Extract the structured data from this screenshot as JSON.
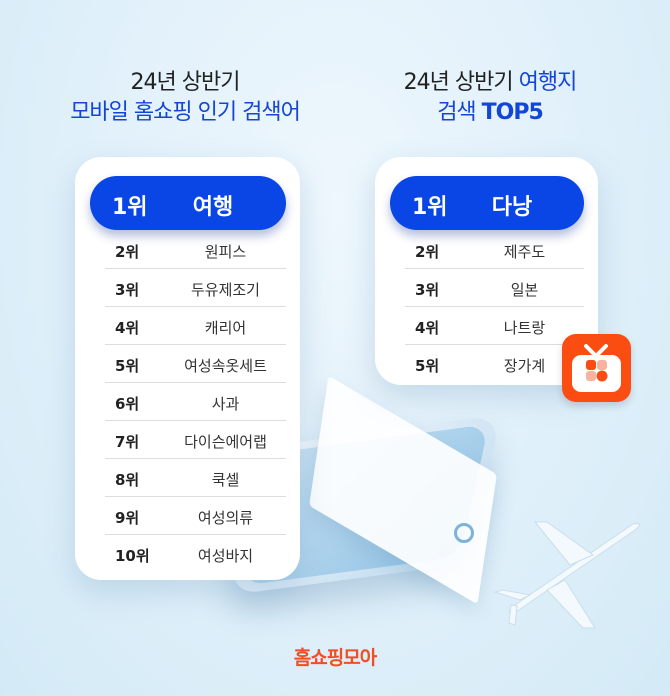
{
  "left": {
    "title_line1": "24년 상반기",
    "title_line2": "모바일 홈쇼핑 인기 검색어",
    "items": [
      {
        "rank": "1위",
        "name": "여행"
      },
      {
        "rank": "2위",
        "name": "원피스"
      },
      {
        "rank": "3위",
        "name": "두유제조기"
      },
      {
        "rank": "4위",
        "name": "캐리어"
      },
      {
        "rank": "5위",
        "name": "여성속옷세트"
      },
      {
        "rank": "6위",
        "name": "사과"
      },
      {
        "rank": "7위",
        "name": "다이슨에어랩"
      },
      {
        "rank": "8위",
        "name": "쿡셀"
      },
      {
        "rank": "9위",
        "name": "여성의류"
      },
      {
        "rank": "10위",
        "name": "여성바지"
      }
    ]
  },
  "right": {
    "title_line1a": "24년 상반기 ",
    "title_line1b": "여행지",
    "title_line2a": "검색 ",
    "title_line2b": "TOP5",
    "items": [
      {
        "rank": "1위",
        "name": "다낭"
      },
      {
        "rank": "2위",
        "name": "제주도"
      },
      {
        "rank": "3위",
        "name": "일본"
      },
      {
        "rank": "4위",
        "name": "나트랑"
      },
      {
        "rank": "5위",
        "name": "장가계"
      }
    ]
  },
  "brand": {
    "logo": "홈쇼핑모아",
    "accent": "#f04e23",
    "blue": "#0a45e6",
    "app_icon": "tv-icon"
  }
}
